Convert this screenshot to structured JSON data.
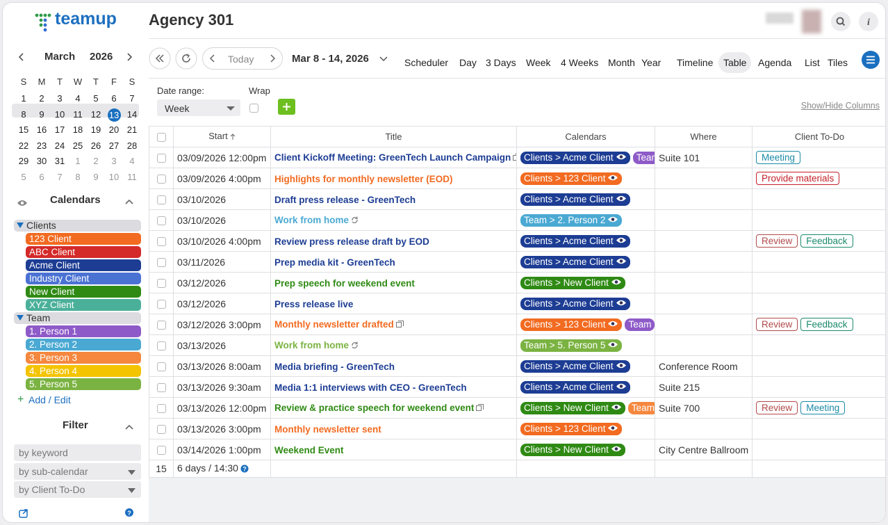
{
  "header": {
    "brand": "teamup",
    "title": "Agency 301"
  },
  "mini_calendar": {
    "month": "March",
    "year": "2026",
    "weekdays": [
      "S",
      "M",
      "T",
      "W",
      "T",
      "F",
      "S"
    ],
    "weeks": [
      [
        1,
        2,
        3,
        4,
        5,
        6,
        7
      ],
      [
        8,
        9,
        10,
        11,
        12,
        13,
        14
      ],
      [
        15,
        16,
        17,
        18,
        19,
        20,
        21
      ],
      [
        22,
        23,
        24,
        25,
        26,
        27,
        28
      ],
      [
        29,
        30,
        31,
        1,
        2,
        3,
        4
      ],
      [
        5,
        6,
        7,
        8,
        9,
        10,
        11
      ]
    ]
  },
  "sidebar": {
    "calendars_title": "Calendars",
    "groups": [
      {
        "name": "Clients",
        "items": [
          {
            "name": "123 Client",
            "color": "#f26b21"
          },
          {
            "name": "ABC Client",
            "color": "#d42a2a"
          },
          {
            "name": "Acme Client",
            "color": "#1d3d94"
          },
          {
            "name": "Industry Client",
            "color": "#4a72d3"
          },
          {
            "name": "New Client",
            "color": "#2f8a14"
          },
          {
            "name": "XYZ Client",
            "color": "#4bb09a"
          }
        ]
      },
      {
        "name": "Team",
        "items": [
          {
            "name": "1. Person 1",
            "color": "#8e5ac8"
          },
          {
            "name": "2. Person 2",
            "color": "#4aa9d3"
          },
          {
            "name": "3. Person 3",
            "color": "#f5873e"
          },
          {
            "name": "4. Person 4",
            "color": "#f4c400"
          },
          {
            "name": "5. Person 5",
            "color": "#7bb342"
          }
        ]
      }
    ],
    "add_edit": "Add / Edit",
    "filter_title": "Filter",
    "filters": [
      "by keyword",
      "by sub-calendar",
      "by Client To-Do"
    ]
  },
  "toolbar": {
    "today": "Today",
    "range": "Mar 8 - 14, 2026",
    "views": [
      "Scheduler",
      "Day",
      "3 Days",
      "Week",
      "4 Weeks",
      "Month",
      "Year",
      "Timeline",
      "Table",
      "Agenda",
      "List",
      "Tiles"
    ],
    "active_view": "Table"
  },
  "options": {
    "date_range_label": "Date range:",
    "date_range_value": "Week",
    "wrap_label": "Wrap",
    "show_hide": "Show/Hide Columns"
  },
  "table": {
    "columns": [
      "Start",
      "Title",
      "Calendars",
      "Where",
      "Client To-Do"
    ],
    "rows": [
      {
        "start": "03/09/2026 12:00pm",
        "title": "Client Kickoff Meeting: GreenTech Launch Campaign",
        "color": "#1d3d94",
        "icon": "copy",
        "calendars": [
          {
            "label": "Clients > Acme Client",
            "color": "#1d3d94"
          },
          {
            "label": "Team",
            "color": "#8e5ac8"
          }
        ],
        "where": "Suite 101",
        "todos": [
          {
            "label": "Meeting",
            "color": "#1a8aa6"
          }
        ]
      },
      {
        "start": "03/09/2026 4:00pm",
        "title": "Highlights for monthly newsletter (EOD)",
        "color": "#f26b21",
        "calendars": [
          {
            "label": "Clients > 123 Client",
            "color": "#f26b21"
          }
        ],
        "where": "",
        "todos": [
          {
            "label": "Provide materials",
            "color": "#c41f28"
          }
        ]
      },
      {
        "start": "03/10/2026",
        "title": "Draft press release - GreenTech",
        "color": "#1d3d94",
        "calendars": [
          {
            "label": "Clients > Acme Client",
            "color": "#1d3d94"
          }
        ],
        "where": "",
        "todos": []
      },
      {
        "start": "03/10/2026",
        "title": "Work from home",
        "color": "#4aa9d3",
        "icon": "repeat",
        "calendars": [
          {
            "label": "Team > 2. Person 2",
            "color": "#4aa9d3"
          }
        ],
        "where": "",
        "todos": []
      },
      {
        "start": "03/10/2026 4:00pm",
        "title": "Review press release draft by EOD",
        "color": "#1d3d94",
        "calendars": [
          {
            "label": "Clients > Acme Client",
            "color": "#1d3d94"
          }
        ],
        "where": "",
        "todos": [
          {
            "label": "Review",
            "color": "#b24a4a"
          },
          {
            "label": "Feedback",
            "color": "#1b8a6c"
          }
        ]
      },
      {
        "start": "03/11/2026",
        "title": "Prep media kit - GreenTech",
        "color": "#1d3d94",
        "calendars": [
          {
            "label": "Clients > Acme Client",
            "color": "#1d3d94"
          }
        ],
        "where": "",
        "todos": []
      },
      {
        "start": "03/12/2026",
        "title": "Prep speech for weekend event",
        "color": "#2f8a14",
        "calendars": [
          {
            "label": "Clients > New Client",
            "color": "#2f8a14"
          }
        ],
        "where": "",
        "todos": []
      },
      {
        "start": "03/12/2026",
        "title": "Press release live",
        "color": "#1d3d94",
        "calendars": [
          {
            "label": "Clients > Acme Client",
            "color": "#1d3d94"
          }
        ],
        "where": "",
        "todos": []
      },
      {
        "start": "03/12/2026 3:00pm",
        "title": "Monthly newsletter drafted",
        "color": "#f26b21",
        "icon": "copy",
        "calendars": [
          {
            "label": "Clients > 123 Client",
            "color": "#f26b21"
          },
          {
            "label": "Team",
            "color": "#8e5ac8"
          }
        ],
        "where": "",
        "todos": [
          {
            "label": "Review",
            "color": "#b24a4a"
          },
          {
            "label": "Feedback",
            "color": "#1b8a6c"
          }
        ]
      },
      {
        "start": "03/13/2026",
        "title": "Work from home",
        "color": "#7bb342",
        "icon": "repeat",
        "calendars": [
          {
            "label": "Team > 5. Person 5",
            "color": "#7bb342"
          }
        ],
        "where": "",
        "todos": []
      },
      {
        "start": "03/13/2026 8:00am",
        "title": "Media briefing - GreenTech",
        "color": "#1d3d94",
        "calendars": [
          {
            "label": "Clients > Acme Client",
            "color": "#1d3d94"
          }
        ],
        "where": "Conference Room",
        "todos": []
      },
      {
        "start": "03/13/2026 9:30am",
        "title": "Media 1:1 interviews with CEO - GreenTech",
        "color": "#1d3d94",
        "calendars": [
          {
            "label": "Clients > Acme Client",
            "color": "#1d3d94"
          }
        ],
        "where": "Suite 215",
        "todos": []
      },
      {
        "start": "03/13/2026 12:00pm",
        "title": "Review & practice speech for weekend event",
        "color": "#2f8a14",
        "icon": "copy",
        "calendars": [
          {
            "label": "Clients > New Client",
            "color": "#2f8a14"
          },
          {
            "label": "Team",
            "color": "#f5873e"
          }
        ],
        "where": "Suite 700",
        "todos": [
          {
            "label": "Review",
            "color": "#b24a4a"
          },
          {
            "label": "Meeting",
            "color": "#1a8aa6"
          }
        ]
      },
      {
        "start": "03/13/2026 3:00pm",
        "title": "Monthly newsletter sent",
        "color": "#f26b21",
        "calendars": [
          {
            "label": "Clients > 123 Client",
            "color": "#f26b21"
          }
        ],
        "where": "",
        "todos": []
      },
      {
        "start": "03/14/2026 1:00pm",
        "title": "Weekend Event",
        "color": "#2f8a14",
        "calendars": [
          {
            "label": "Clients > New Client",
            "color": "#2f8a14"
          }
        ],
        "where": "City Centre Ballroom",
        "todos": []
      }
    ],
    "footer": {
      "count": 15,
      "summary": "6 days / 14:30"
    }
  }
}
